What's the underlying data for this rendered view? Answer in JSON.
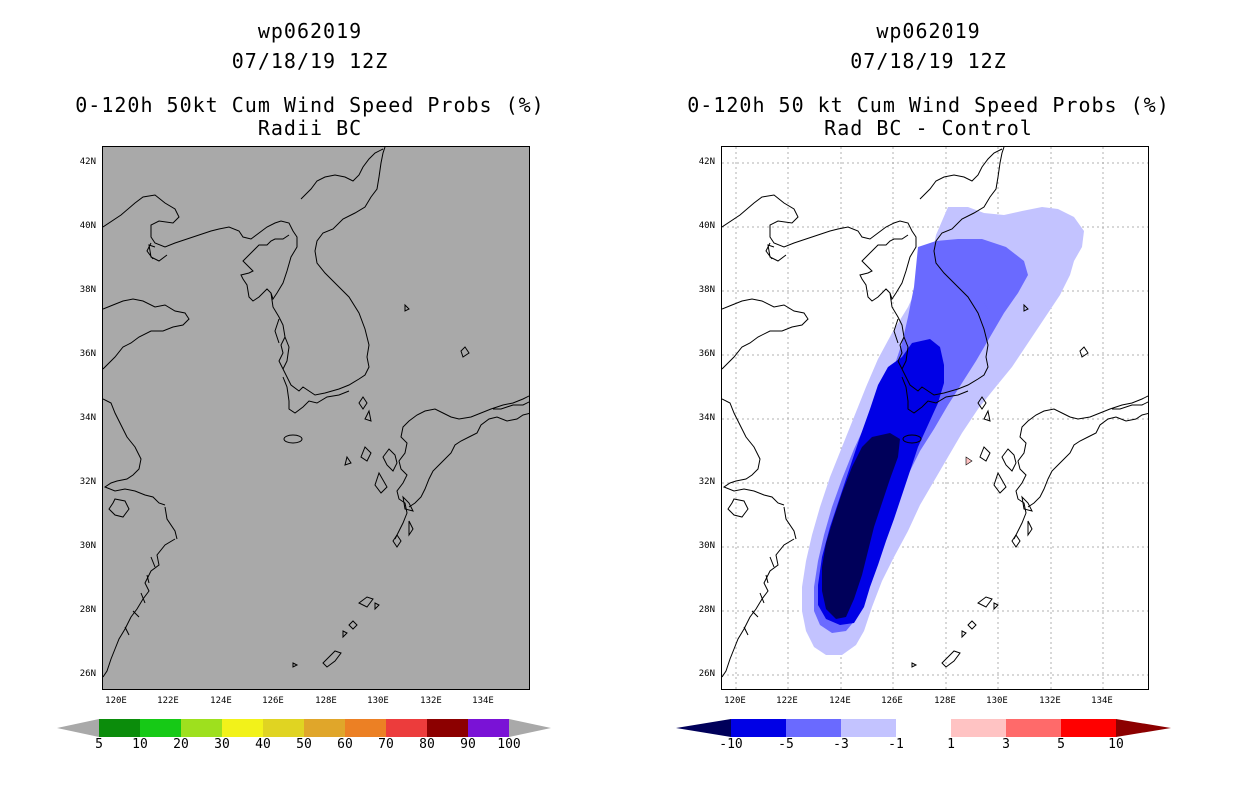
{
  "left": {
    "storm": "wp062019",
    "datetime": "07/18/19 12Z",
    "title": "0-120h 50kt Cum Wind Speed Probs (%)",
    "subtitle": "Radii BC",
    "colorbar": {
      "colors": [
        "#0b8c0b",
        "#16c916",
        "#9ee01e",
        "#f2f21a",
        "#e0d422",
        "#e0a62a",
        "#ec8024",
        "#ec3c3c",
        "#8c0000",
        "#7a12d6"
      ],
      "labels": [
        "5",
        "10",
        "20",
        "30",
        "40",
        "50",
        "60",
        "70",
        "80",
        "90",
        "100"
      ]
    }
  },
  "right": {
    "storm": "wp062019",
    "datetime": "07/18/19 12Z",
    "title": "0-120h 50 kt Cum Wind Speed Probs (%)",
    "subtitle": "Rad BC - Control",
    "colorbar": {
      "colors": [
        "#0000e6",
        "#6a6aff",
        "#c3c3ff",
        "#ffffff",
        "#ffc3c3",
        "#ff6a6a",
        "#ff0000"
      ],
      "low_color": "#00005a",
      "high_color": "#8c0000",
      "labels": [
        "-10",
        "-5",
        "-3",
        "-1",
        "1",
        "3",
        "5",
        "10"
      ]
    }
  },
  "lat_labels": [
    "42N",
    "40N",
    "38N",
    "36N",
    "34N",
    "32N",
    "30N",
    "28N",
    "26N"
  ],
  "lon_labels": [
    "120E",
    "122E",
    "124E",
    "126E",
    "128E",
    "130E",
    "132E",
    "134E"
  ]
}
